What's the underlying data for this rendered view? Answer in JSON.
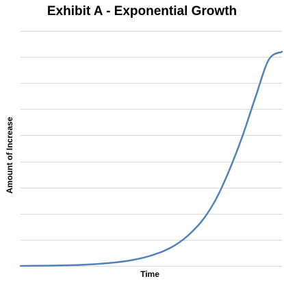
{
  "chart_data": {
    "type": "line",
    "title": "Exhibit A - Exponential Growth",
    "xlabel": "Time",
    "ylabel": "Amount of Increase",
    "grid": true,
    "ylim": [
      0,
      9
    ],
    "yticks": [
      0,
      1,
      2,
      3,
      4,
      5,
      6,
      7,
      8,
      9
    ],
    "xlim": [
      0,
      10
    ],
    "line_color": "#4f81bd",
    "grid_color": "#d9d9d9",
    "series": [
      {
        "values": [
          {
            "x": 0,
            "y": 0.0
          },
          {
            "x": 0.5,
            "y": 0.005
          },
          {
            "x": 1,
            "y": 0.01
          },
          {
            "x": 1.5,
            "y": 0.02
          },
          {
            "x": 2,
            "y": 0.03
          },
          {
            "x": 2.5,
            "y": 0.05
          },
          {
            "x": 3,
            "y": 0.08
          },
          {
            "x": 3.5,
            "y": 0.12
          },
          {
            "x": 4,
            "y": 0.18
          },
          {
            "x": 4.5,
            "y": 0.27
          },
          {
            "x": 5,
            "y": 0.4
          },
          {
            "x": 5.5,
            "y": 0.58
          },
          {
            "x": 6,
            "y": 0.85
          },
          {
            "x": 6.5,
            "y": 1.25
          },
          {
            "x": 7,
            "y": 1.8
          },
          {
            "x": 7.5,
            "y": 2.6
          },
          {
            "x": 8,
            "y": 3.7
          },
          {
            "x": 8.5,
            "y": 5.0
          },
          {
            "x": 9,
            "y": 6.5
          },
          {
            "x": 9.5,
            "y": 7.9
          },
          {
            "x": 10,
            "y": 8.2
          }
        ]
      }
    ]
  }
}
